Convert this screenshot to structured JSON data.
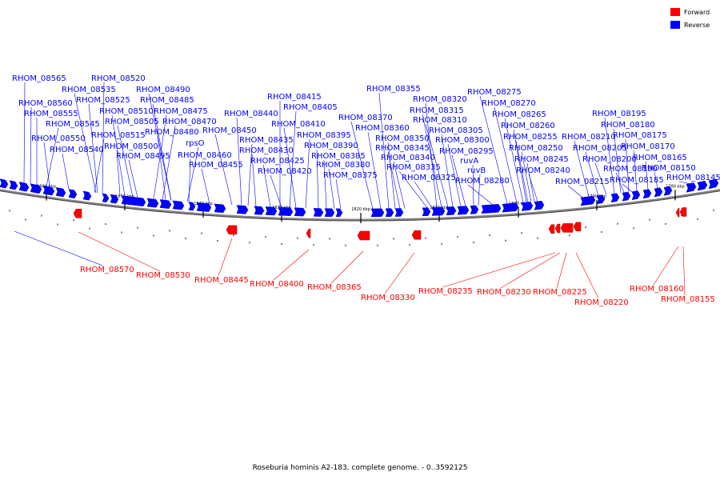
{
  "legend": {
    "forward_label": "Forward",
    "reverse_label": "Reverse",
    "forward_color": "#ff0000",
    "reverse_color": "#0000ff"
  },
  "caption": "Roseburia hominis A2-183, complete genome. - 0..3592125",
  "backbone_color": "#888888",
  "reverse_labels": [
    "RHOM_08565",
    "RHOM_08520",
    "RHOM_08535",
    "RHOM_08490",
    "RHOM_08525",
    "RHOM_08485",
    "RHOM_08560",
    "RHOM_08510",
    "RHOM_08475",
    "RHOM_08555",
    "RHOM_08505",
    "RHOM_08470",
    "RHOM_08545",
    "RHOM_08480",
    "RHOM_08515",
    "RHOM_08550",
    "rpsO",
    "RHOM_08500",
    "RHOM_08540",
    "RHOM_08495",
    "RHOM_08460",
    "RHOM_08455",
    "RHOM_08440",
    "RHOM_08450",
    "RHOM_08435",
    "RHOM_08430",
    "RHOM_08425",
    "RHOM_08420",
    "RHOM_08415",
    "RHOM_08405",
    "RHOM_08410",
    "RHOM_08395",
    "RHOM_08390",
    "RHOM_08385",
    "RHOM_08380",
    "RHOM_08375",
    "RHOM_08370",
    "RHOM_08360",
    "RHOM_08355",
    "RHOM_08350",
    "RHOM_08345",
    "RHOM_08340",
    "RHOM_08335",
    "RHOM_08325",
    "RHOM_08320",
    "RHOM_08315",
    "RHOM_08310",
    "RHOM_08305",
    "RHOM_08300",
    "RHOM_08295",
    "ruvA",
    "ruvB",
    "RHOM_08280",
    "RHOM_08275",
    "RHOM_08270",
    "RHOM_08265",
    "RHOM_08260",
    "RHOM_08255",
    "RHOM_08250",
    "RHOM_08245",
    "RHOM_08240",
    "RHOM_08210",
    "RHOM_08205",
    "RHOM_08200",
    "RHOM_08215",
    "RHOM_08195",
    "RHOM_08180",
    "RHOM_08175",
    "RHOM_08170",
    "RHOM_08190",
    "RHOM_08185",
    "RHOM_08165",
    "RHOM_08150",
    "RHOM_08145"
  ],
  "forward_labels": [
    "RHOM_08570",
    "RHOM_08530",
    "RHOM_08445",
    "RHOM_08400",
    "RHOM_08365",
    "RHOM_08330",
    "RHOM_08235",
    "RHOM_08230",
    "RHOM_08225",
    "RHOM_08220",
    "RHOM_08160",
    "RHOM_08155"
  ],
  "scale_labels": [
    "1860 kbp",
    "1850 kbp",
    "1840 kbp",
    "1830 kbp",
    "1820 kbp",
    "1810 kbp",
    "1800 kbp",
    "1790 kbp",
    "1780 kbp"
  ]
}
